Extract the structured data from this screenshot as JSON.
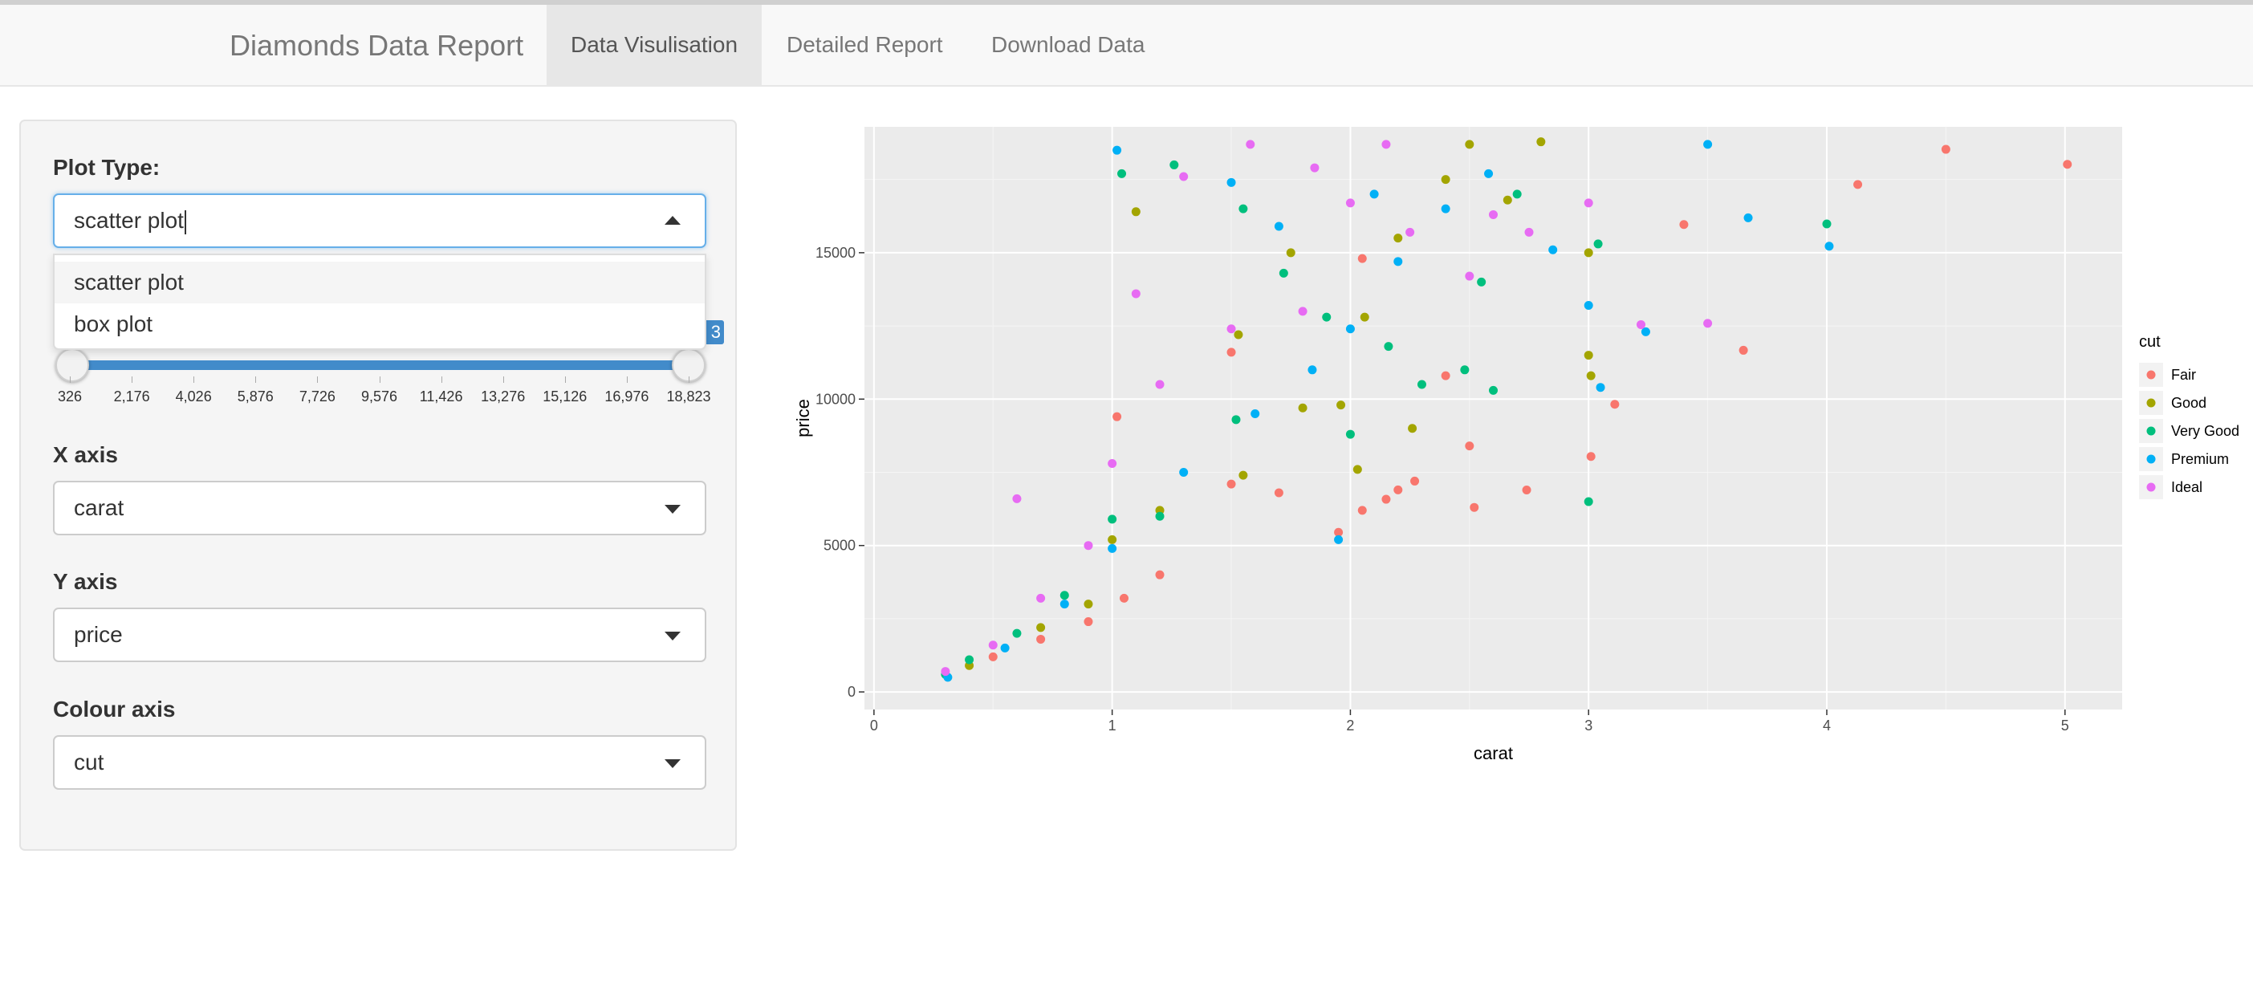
{
  "app": {
    "brand": "Diamonds Data Report",
    "tabs": [
      {
        "label": "Data Visulisation",
        "active": true
      },
      {
        "label": "Detailed Report",
        "active": false
      },
      {
        "label": "Download Data",
        "active": false
      }
    ]
  },
  "sidebar": {
    "plot_type": {
      "label": "Plot Type:",
      "value": "scatter plot",
      "options": [
        "scatter plot",
        "box plot"
      ],
      "expanded": true
    },
    "price_slider": {
      "min": 326,
      "max": 18823,
      "selected": [
        326,
        18823
      ],
      "bubble_visible": "3",
      "ticks": [
        "326",
        "2,176",
        "4,026",
        "5,876",
        "7,726",
        "9,576",
        "11,426",
        "13,276",
        "15,126",
        "16,976",
        "18,823"
      ]
    },
    "x_axis": {
      "label": "X axis",
      "value": "carat"
    },
    "y_axis": {
      "label": "Y axis",
      "value": "price"
    },
    "colour_axis": {
      "label": "Colour axis",
      "value": "cut"
    }
  },
  "chart_data": {
    "type": "scatter",
    "xlabel": "carat",
    "ylabel": "price",
    "xlim": [
      -0.04,
      5.24
    ],
    "ylim": [
      -600,
      19300
    ],
    "x_ticks": [
      0,
      1,
      2,
      3,
      4,
      5
    ],
    "y_ticks": [
      0,
      5000,
      10000,
      15000
    ],
    "y_tick_labels": [
      "0",
      "5000",
      "10000",
      "15000"
    ],
    "grid": true,
    "legend": {
      "title": "cut",
      "position": "right",
      "entries": [
        "Fair",
        "Good",
        "Very Good",
        "Premium",
        "Ideal"
      ]
    },
    "colors": {
      "Fair": "#F8766D",
      "Good": "#A3A500",
      "Very Good": "#00BF7D",
      "Premium": "#00B0F6",
      "Ideal": "#E76BF3"
    },
    "series": [
      {
        "name": "Fair",
        "points": [
          [
            5.01,
            18018
          ],
          [
            4.5,
            18531
          ],
          [
            4.13,
            17329
          ],
          [
            3.65,
            11668
          ],
          [
            3.4,
            15964
          ],
          [
            3.11,
            9823
          ],
          [
            3.01,
            8040
          ],
          [
            2.74,
            6896
          ],
          [
            2.52,
            6302
          ],
          [
            2.5,
            8400
          ],
          [
            2.27,
            7200
          ],
          [
            2.2,
            6900
          ],
          [
            2.15,
            6580
          ],
          [
            2.05,
            6200
          ],
          [
            1.95,
            5450
          ],
          [
            1.7,
            6800
          ],
          [
            1.5,
            7100
          ],
          [
            1.2,
            4000
          ],
          [
            1.05,
            3200
          ],
          [
            0.9,
            2400
          ],
          [
            0.7,
            1800
          ],
          [
            0.5,
            1200
          ],
          [
            2.4,
            10800
          ],
          [
            2.05,
            14800
          ],
          [
            1.5,
            11600
          ],
          [
            1.02,
            9400
          ]
        ]
      },
      {
        "name": "Good",
        "points": [
          [
            2.8,
            18788
          ],
          [
            2.5,
            18700
          ],
          [
            3.0,
            15000
          ],
          [
            3.0,
            11500
          ],
          [
            3.01,
            10800
          ],
          [
            2.66,
            16800
          ],
          [
            2.4,
            17500
          ],
          [
            2.26,
            9000
          ],
          [
            2.03,
            7600
          ],
          [
            1.96,
            9800
          ],
          [
            1.55,
            7400
          ],
          [
            1.2,
            6200
          ],
          [
            1.0,
            5200
          ],
          [
            0.9,
            3000
          ],
          [
            0.7,
            2200
          ],
          [
            0.4,
            900
          ],
          [
            1.1,
            16400
          ],
          [
            1.53,
            12200
          ],
          [
            1.75,
            15000
          ],
          [
            2.2,
            15500
          ],
          [
            2.06,
            12800
          ],
          [
            1.8,
            9700
          ]
        ]
      },
      {
        "name": "Very Good",
        "points": [
          [
            3.0,
            6500
          ],
          [
            4.0,
            15984
          ],
          [
            3.04,
            15300
          ],
          [
            2.7,
            17000
          ],
          [
            2.55,
            14000
          ],
          [
            2.3,
            10500
          ],
          [
            2.0,
            8800
          ],
          [
            1.52,
            9300
          ],
          [
            1.2,
            6000
          ],
          [
            1.0,
            5900
          ],
          [
            0.8,
            3300
          ],
          [
            0.6,
            2000
          ],
          [
            0.4,
            1100
          ],
          [
            0.3,
            600
          ],
          [
            1.04,
            17700
          ],
          [
            1.26,
            18000
          ],
          [
            1.55,
            16500
          ],
          [
            1.72,
            14300
          ],
          [
            1.9,
            12800
          ],
          [
            2.16,
            11800
          ],
          [
            2.48,
            11000
          ],
          [
            2.6,
            10300
          ]
        ]
      },
      {
        "name": "Premium",
        "points": [
          [
            4.01,
            15223
          ],
          [
            3.67,
            16193
          ],
          [
            3.5,
            18701
          ],
          [
            3.24,
            12300
          ],
          [
            3.05,
            10400
          ],
          [
            3.0,
            13200
          ],
          [
            2.85,
            15100
          ],
          [
            2.58,
            17700
          ],
          [
            2.4,
            16500
          ],
          [
            2.2,
            14700
          ],
          [
            2.0,
            12400
          ],
          [
            1.84,
            11000
          ],
          [
            1.6,
            9500
          ],
          [
            1.3,
            7500
          ],
          [
            1.0,
            4900
          ],
          [
            0.8,
            3000
          ],
          [
            0.55,
            1500
          ],
          [
            0.31,
            500
          ],
          [
            1.02,
            18500
          ],
          [
            1.5,
            17400
          ],
          [
            1.7,
            15900
          ],
          [
            2.1,
            17000
          ],
          [
            1.95,
            5200
          ]
        ]
      },
      {
        "name": "Ideal",
        "points": [
          [
            3.5,
            12587
          ],
          [
            3.22,
            12545
          ],
          [
            3.0,
            16700
          ],
          [
            2.75,
            15700
          ],
          [
            2.5,
            14200
          ],
          [
            2.25,
            15700
          ],
          [
            2.0,
            16700
          ],
          [
            1.8,
            13000
          ],
          [
            1.5,
            12400
          ],
          [
            1.2,
            10500
          ],
          [
            1.0,
            7800
          ],
          [
            0.9,
            5000
          ],
          [
            0.7,
            3200
          ],
          [
            0.5,
            1600
          ],
          [
            0.3,
            700
          ],
          [
            0.6,
            6600
          ],
          [
            1.3,
            17600
          ],
          [
            1.58,
            18700
          ],
          [
            1.85,
            17900
          ],
          [
            2.15,
            18700
          ],
          [
            2.6,
            16300
          ],
          [
            1.1,
            13600
          ]
        ]
      }
    ]
  }
}
